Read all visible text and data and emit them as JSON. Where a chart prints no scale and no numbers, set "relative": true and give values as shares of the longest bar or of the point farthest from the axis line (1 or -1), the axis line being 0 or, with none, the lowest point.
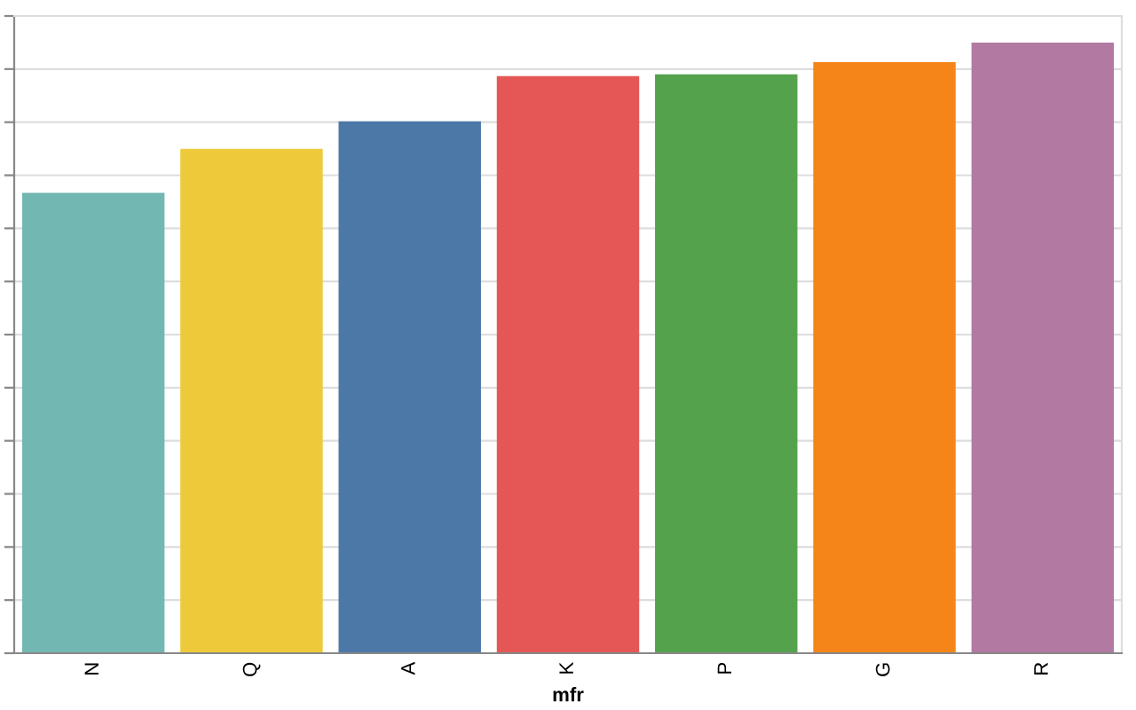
{
  "chart_data": {
    "type": "bar",
    "xlabel": "mfr",
    "relative": true,
    "grid": "y",
    "tick_labels": "x",
    "categories": [
      "N",
      "Q",
      "A",
      "K",
      "P",
      "G",
      "R"
    ],
    "values": [
      0.754,
      0.826,
      0.871,
      0.945,
      0.948,
      0.968,
      1
    ],
    "colors": [
      "#72b7b2",
      "#eeca3b",
      "#4c78a8",
      "#e45756",
      "#54a24b",
      "#f58518",
      "#b279a2"
    ]
  }
}
